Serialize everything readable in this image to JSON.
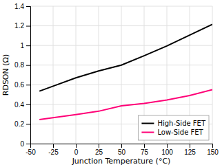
{
  "chart_data": {
    "type": "line",
    "xlabel": "Junction Temperature (°C)",
    "ylabel": "RDSON (Ω)",
    "x": [
      -40,
      -25,
      0,
      25,
      50,
      75,
      100,
      125,
      150
    ],
    "series": [
      {
        "name": "High-Side FET",
        "color": "#000000",
        "values": [
          0.535,
          0.585,
          0.67,
          0.74,
          0.8,
          0.895,
          0.995,
          1.105,
          1.215
        ]
      },
      {
        "name": "Low-Side FET",
        "color": "#ff0077",
        "values": [
          0.245,
          0.265,
          0.295,
          0.33,
          0.385,
          0.41,
          0.445,
          0.49,
          0.55
        ]
      }
    ],
    "xlim": [
      -50,
      150
    ],
    "ylim": [
      0,
      1.4
    ],
    "xticks": [
      -50,
      -25,
      0,
      25,
      50,
      75,
      100,
      125,
      150
    ],
    "yticks": [
      0,
      0.2,
      0.4,
      0.6,
      0.8,
      1,
      1.2,
      1.4
    ],
    "grid": true,
    "legend": "lower right"
  }
}
